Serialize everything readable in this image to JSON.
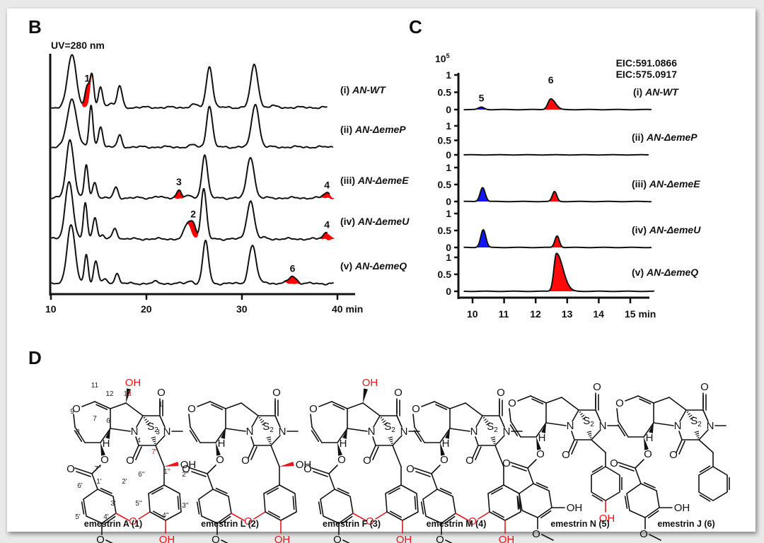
{
  "figure": {
    "panel_b_letter": "B",
    "panel_c_letter": "C",
    "panel_d_letter": "D"
  },
  "chart_data": [
    {
      "id": "B",
      "type": "line",
      "title": "UV=280 nm",
      "xlabel": "min",
      "ylabel": "",
      "xlim": [
        10,
        42
      ],
      "xticks": [
        10,
        20,
        30,
        40
      ],
      "xtick_labels": [
        "10",
        "20",
        "30",
        "40 min"
      ],
      "grid": false,
      "legend": "none",
      "highlight_color": "#ff0000",
      "traces": [
        {
          "label_prefix": "(i) ",
          "label_strain": "AN-WT",
          "peaks": [
            {
              "rt": 12.2,
              "h": 1.0,
              "w": 0.45
            },
            {
              "rt": 13.8,
              "h": 0.38,
              "w": 0.25,
              "highlight": true,
              "num": "1"
            },
            {
              "rt": 14.3,
              "h": 0.58,
              "w": 0.2
            },
            {
              "rt": 15.2,
              "h": 0.38,
              "w": 0.22
            },
            {
              "rt": 16.2,
              "h": 0.07,
              "w": 0.4
            },
            {
              "rt": 17.2,
              "h": 0.4,
              "w": 0.25
            },
            {
              "rt": 25.0,
              "h": 0.05,
              "w": 0.4
            },
            {
              "rt": 26.6,
              "h": 0.78,
              "w": 0.32
            },
            {
              "rt": 31.3,
              "h": 0.8,
              "w": 0.38
            },
            {
              "rt": 33.2,
              "h": 0.03,
              "w": 0.3
            }
          ]
        },
        {
          "label_prefix": "(ii) ",
          "label_strain": "AN-ΔemeP",
          "peaks": [
            {
              "rt": 12.2,
              "h": 0.9,
              "w": 0.5
            },
            {
              "rt": 14.2,
              "h": 0.78,
              "w": 0.2
            },
            {
              "rt": 15.2,
              "h": 0.4,
              "w": 0.22
            },
            {
              "rt": 17.2,
              "h": 0.22,
              "w": 0.22
            },
            {
              "rt": 24.9,
              "h": 0.04,
              "w": 0.3
            },
            {
              "rt": 26.6,
              "h": 0.78,
              "w": 0.3
            },
            {
              "rt": 31.4,
              "h": 0.82,
              "w": 0.38
            }
          ]
        },
        {
          "label_prefix": "(iii) ",
          "label_strain": "AN-ΔemeE",
          "peaks": [
            {
              "rt": 12.0,
              "h": 1.1,
              "w": 0.4
            },
            {
              "rt": 13.7,
              "h": 0.62,
              "w": 0.2
            },
            {
              "rt": 14.6,
              "h": 0.3,
              "w": 0.22
            },
            {
              "rt": 16.8,
              "h": 0.2,
              "w": 0.22
            },
            {
              "rt": 21.0,
              "h": 0.03,
              "w": 0.3
            },
            {
              "rt": 23.4,
              "h": 0.16,
              "w": 0.25,
              "highlight": true,
              "num": "3"
            },
            {
              "rt": 24.5,
              "h": 0.04,
              "w": 0.25
            },
            {
              "rt": 26.1,
              "h": 0.82,
              "w": 0.3
            },
            {
              "rt": 30.9,
              "h": 0.78,
              "w": 0.38
            },
            {
              "rt": 38.9,
              "h": 0.1,
              "w": 0.35,
              "highlight": true,
              "num": "4"
            }
          ]
        },
        {
          "label_prefix": "(iv) ",
          "label_strain": "AN-ΔemeU",
          "peaks": [
            {
              "rt": 11.9,
              "h": 1.1,
              "w": 0.4
            },
            {
              "rt": 13.6,
              "h": 0.68,
              "w": 0.2
            },
            {
              "rt": 14.6,
              "h": 0.42,
              "w": 0.22
            },
            {
              "rt": 15.4,
              "h": 0.06,
              "w": 0.2
            },
            {
              "rt": 16.7,
              "h": 0.2,
              "w": 0.25
            },
            {
              "rt": 24.3,
              "h": 0.28,
              "w": 0.35
            },
            {
              "rt": 24.9,
              "h": 0.26,
              "w": 0.28,
              "highlight": true,
              "num": "2"
            },
            {
              "rt": 26.0,
              "h": 0.95,
              "w": 0.28
            },
            {
              "rt": 30.9,
              "h": 0.72,
              "w": 0.38
            },
            {
              "rt": 32.4,
              "h": 0.02,
              "w": 0.3
            },
            {
              "rt": 38.9,
              "h": 0.13,
              "w": 0.35,
              "highlight": true,
              "num": "4"
            }
          ]
        },
        {
          "label_prefix": "(v) ",
          "label_strain": "AN-ΔemeQ",
          "peaks": [
            {
              "rt": 12.1,
              "h": 1.1,
              "w": 0.42
            },
            {
              "rt": 13.7,
              "h": 0.55,
              "w": 0.2
            },
            {
              "rt": 14.7,
              "h": 0.42,
              "w": 0.22
            },
            {
              "rt": 15.6,
              "h": 0.08,
              "w": 0.25
            },
            {
              "rt": 16.9,
              "h": 0.2,
              "w": 0.22
            },
            {
              "rt": 21.0,
              "h": 0.03,
              "w": 0.3
            },
            {
              "rt": 24.6,
              "h": 0.05,
              "w": 0.3
            },
            {
              "rt": 26.2,
              "h": 0.8,
              "w": 0.3
            },
            {
              "rt": 31.1,
              "h": 0.72,
              "w": 0.38
            },
            {
              "rt": 32.5,
              "h": 0.03,
              "w": 0.3
            },
            {
              "rt": 35.3,
              "h": 0.14,
              "w": 0.4,
              "highlight": true,
              "num": "6"
            }
          ]
        }
      ]
    },
    {
      "id": "C",
      "type": "area",
      "title": "",
      "xlabel": "min",
      "ylabel": "",
      "y_multiplier_label": "10",
      "y_multiplier_exp": "5",
      "xlim": [
        9.7,
        15.5
      ],
      "ylim": [
        0,
        1
      ],
      "xticks": [
        10,
        11,
        12,
        13,
        14,
        15
      ],
      "xtick_labels": [
        "10",
        "11",
        "12",
        "13",
        "14",
        "15 min"
      ],
      "ytick_labels": [
        "0",
        "0.5",
        "1"
      ],
      "grid": false,
      "legend": "top-right",
      "series": [
        {
          "name": "EIC:591.0866",
          "color": "#1414ff",
          "compound": "5"
        },
        {
          "name": "EIC:575.0917",
          "color": "#ff0a0a",
          "compound": "6"
        }
      ],
      "traces": [
        {
          "label_prefix": "(i) ",
          "label_strain": "AN-WT",
          "peaks": [
            {
              "series": 0,
              "rt": 10.28,
              "h": 0.07,
              "w": 0.09,
              "num": "5"
            },
            {
              "series": 1,
              "rt": 12.48,
              "h": 0.31,
              "w": 0.09,
              "num": "6",
              "tail": 0.15
            }
          ]
        },
        {
          "label_prefix": "(ii) ",
          "label_strain": "AN-ΔemeP",
          "peaks": []
        },
        {
          "label_prefix": "(iii) ",
          "label_strain": "AN-ΔemeE",
          "peaks": [
            {
              "series": 0,
              "rt": 10.32,
              "h": 0.41,
              "w": 0.08
            },
            {
              "series": 1,
              "rt": 12.6,
              "h": 0.29,
              "w": 0.07
            }
          ]
        },
        {
          "label_prefix": "(iv) ",
          "label_strain": "AN-ΔemeU",
          "peaks": [
            {
              "series": 0,
              "rt": 10.34,
              "h": 0.52,
              "w": 0.08
            },
            {
              "series": 1,
              "rt": 12.68,
              "h": 0.34,
              "w": 0.07
            }
          ]
        },
        {
          "label_prefix": "(v) ",
          "label_strain": "AN-ΔemeQ",
          "peaks": [
            {
              "series": 1,
              "rt": 12.66,
              "h": 1.12,
              "w": 0.08,
              "tail": 0.35
            }
          ]
        }
      ]
    }
  ],
  "compounds": [
    {
      "name": "emestrin A (1)"
    },
    {
      "name": "emestrin L (2)"
    },
    {
      "name": "emestrin F (3)"
    },
    {
      "name": "emestrin M (4)"
    },
    {
      "name": "emestrin N (5)"
    },
    {
      "name": "emestrin J (6)"
    }
  ],
  "structure_labels": {
    "O": "O",
    "N": "N",
    "H": "H",
    "OH": "OH",
    "S2_S": "S",
    "S2_sub": "2",
    "atom_numbers": [
      "11",
      "12",
      "13",
      "1",
      "9",
      "6",
      "7",
      "8",
      "3",
      "4",
      "7'",
      "7''",
      "1'",
      "1''",
      "2'",
      "6'",
      "6''",
      "2''",
      "3'",
      "5''",
      "5'",
      "4'",
      "4''",
      "3''"
    ]
  }
}
